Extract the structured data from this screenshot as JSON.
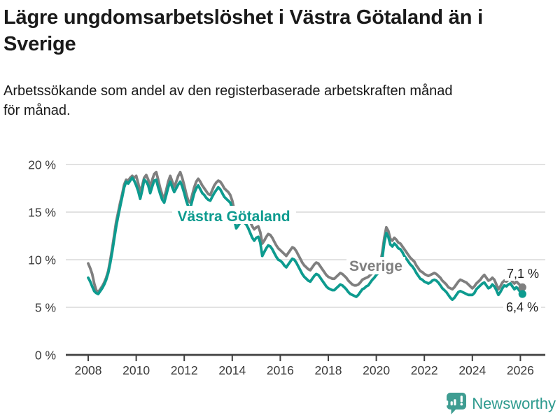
{
  "header": {
    "title": "Lägre ungdomsarbetslöshet i Västra Götaland än i\nSverige",
    "subtitle": "Arbetssökande som andel av den registerbaserade arbetskraften månad\nför månad."
  },
  "chart_data": {
    "type": "line",
    "title": "Lägre ungdomsarbetslöshet i Västra Götaland än i Sverige",
    "subtitle": "Arbetssökande som andel av den registerbaserade arbetskraften månad för månad.",
    "unit": "%",
    "grid": "horizontal",
    "legend_position": "inline-labels",
    "x_start_year": 2008,
    "x_step_months": 1,
    "x_end": "2026-02",
    "x_ticks": [
      2008,
      2010,
      2012,
      2014,
      2016,
      2018,
      2020,
      2022,
      2024,
      2026
    ],
    "ylim": [
      0,
      20
    ],
    "y_ticks": [
      0,
      5,
      10,
      15,
      20
    ],
    "y_tick_labels": [
      "0 %",
      "5 %",
      "10 %",
      "15 %",
      "20 %"
    ],
    "series": [
      {
        "name": "Sverige",
        "color": "#7f7f7f",
        "end_label": "7,1 %",
        "end_value": 7.1,
        "values": [
          9.6,
          9.1,
          8.5,
          7.5,
          6.8,
          6.6,
          6.9,
          7.2,
          7.6,
          8.1,
          8.8,
          9.9,
          11.2,
          12.6,
          14.0,
          15.0,
          16.0,
          16.9,
          17.9,
          18.4,
          18.3,
          18.6,
          18.8,
          18.6,
          18.8,
          18.0,
          17.1,
          17.8,
          18.6,
          18.9,
          18.4,
          17.6,
          18.4,
          19.0,
          19.2,
          18.4,
          17.5,
          16.8,
          16.5,
          17.3,
          18.2,
          18.8,
          18.2,
          17.6,
          18.2,
          18.8,
          19.2,
          18.6,
          17.8,
          16.9,
          16.2,
          16.0,
          16.8,
          17.6,
          18.2,
          18.5,
          18.2,
          17.8,
          17.5,
          17.2,
          16.9,
          16.8,
          17.3,
          17.8,
          18.1,
          18.3,
          18.2,
          17.9,
          17.5,
          17.3,
          17.1,
          16.8,
          16.2,
          15.2,
          14.4,
          14.6,
          14.8,
          15.0,
          14.8,
          14.7,
          14.4,
          14.0,
          13.5,
          13.2,
          13.4,
          13.5,
          12.9,
          11.7,
          12.0,
          12.4,
          12.7,
          12.6,
          12.3,
          11.9,
          11.5,
          11.2,
          11.0,
          10.8,
          10.6,
          10.4,
          10.7,
          11.0,
          11.3,
          11.2,
          10.9,
          10.5,
          10.1,
          9.7,
          9.4,
          9.2,
          9.0,
          8.9,
          9.2,
          9.5,
          9.7,
          9.6,
          9.3,
          9.0,
          8.7,
          8.4,
          8.2,
          8.1,
          8.0,
          8.0,
          8.2,
          8.4,
          8.6,
          8.5,
          8.3,
          8.1,
          7.8,
          7.6,
          7.4,
          7.3,
          7.3,
          7.4,
          7.6,
          7.9,
          8.0,
          8.1,
          8.2,
          8.4,
          8.6,
          8.8,
          9.0,
          9.2,
          9.6,
          10.8,
          12.3,
          13.4,
          13.0,
          12.2,
          12.0,
          12.3,
          12.1,
          11.8,
          11.7,
          11.4,
          11.1,
          10.8,
          10.5,
          10.2,
          10.0,
          9.8,
          9.4,
          9.1,
          8.8,
          8.7,
          8.5,
          8.4,
          8.3,
          8.4,
          8.5,
          8.6,
          8.5,
          8.3,
          8.1,
          7.8,
          7.6,
          7.4,
          7.1,
          7.0,
          6.9,
          7.1,
          7.4,
          7.7,
          7.9,
          7.8,
          7.7,
          7.6,
          7.4,
          7.2,
          7.0,
          7.2,
          7.5,
          7.7,
          7.9,
          8.2,
          8.4,
          8.1,
          7.8,
          7.9,
          8.1,
          7.9,
          7.4,
          6.9,
          7.2,
          7.6,
          7.8,
          7.7,
          7.9,
          8.0,
          7.7,
          7.5,
          7.7,
          7.5,
          7.3,
          7.1
        ]
      },
      {
        "name": "Västra Götaland",
        "color": "#0d9b8f",
        "end_label": "6,4 %",
        "end_value": 6.4,
        "values": [
          8.1,
          7.7,
          7.2,
          6.7,
          6.5,
          6.4,
          6.7,
          7.0,
          7.4,
          7.9,
          8.6,
          9.6,
          10.8,
          12.2,
          13.5,
          14.6,
          15.6,
          16.6,
          17.6,
          18.2,
          18.0,
          18.3,
          18.6,
          18.3,
          17.8,
          17.2,
          16.4,
          17.3,
          18.4,
          18.2,
          17.8,
          17.0,
          17.7,
          18.3,
          18.4,
          17.6,
          16.9,
          16.3,
          16.0,
          16.8,
          17.6,
          18.2,
          17.6,
          17.1,
          17.5,
          17.9,
          18.2,
          17.7,
          17.0,
          16.2,
          15.6,
          15.4,
          16.2,
          17.0,
          17.5,
          17.8,
          17.4,
          17.0,
          16.8,
          16.5,
          16.3,
          16.2,
          16.6,
          17.0,
          17.3,
          17.6,
          17.4,
          17.0,
          16.6,
          16.4,
          16.2,
          16.0,
          15.4,
          14.2,
          13.3,
          13.6,
          13.9,
          14.1,
          13.9,
          13.7,
          13.3,
          12.8,
          12.3,
          12.0,
          12.3,
          12.4,
          11.8,
          10.4,
          10.8,
          11.2,
          11.5,
          11.4,
          11.1,
          10.7,
          10.3,
          10.0,
          9.9,
          9.7,
          9.4,
          9.2,
          9.5,
          9.8,
          10.1,
          10.0,
          9.7,
          9.3,
          8.9,
          8.5,
          8.2,
          8.0,
          7.8,
          7.7,
          8.0,
          8.3,
          8.5,
          8.4,
          8.1,
          7.8,
          7.5,
          7.2,
          7.0,
          6.9,
          6.8,
          6.8,
          7.0,
          7.2,
          7.4,
          7.3,
          7.1,
          6.9,
          6.6,
          6.4,
          6.3,
          6.2,
          6.1,
          6.3,
          6.6,
          6.9,
          7.0,
          7.2,
          7.3,
          7.6,
          7.9,
          8.1,
          8.4,
          8.6,
          9.0,
          10.2,
          11.8,
          12.8,
          12.4,
          11.6,
          11.4,
          11.7,
          11.5,
          11.2,
          11.1,
          10.8,
          10.4,
          10.1,
          9.8,
          9.5,
          9.3,
          9.0,
          8.6,
          8.3,
          8.0,
          7.9,
          7.7,
          7.6,
          7.5,
          7.6,
          7.8,
          7.9,
          7.8,
          7.6,
          7.3,
          7.0,
          6.8,
          6.6,
          6.3,
          6.0,
          5.8,
          6.0,
          6.3,
          6.6,
          6.7,
          6.6,
          6.5,
          6.4,
          6.3,
          6.3,
          6.3,
          6.5,
          6.9,
          7.1,
          7.3,
          7.5,
          7.6,
          7.3,
          7.0,
          7.1,
          7.4,
          7.2,
          6.8,
          6.3,
          6.6,
          7.0,
          7.3,
          7.2,
          7.4,
          7.5,
          7.2,
          6.9,
          7.1,
          6.9,
          6.6,
          6.4
        ]
      }
    ]
  },
  "footer": {
    "brand": "Newsworthy",
    "brand_color": "#2d9a8e",
    "logo_color": "#3f9d92"
  }
}
